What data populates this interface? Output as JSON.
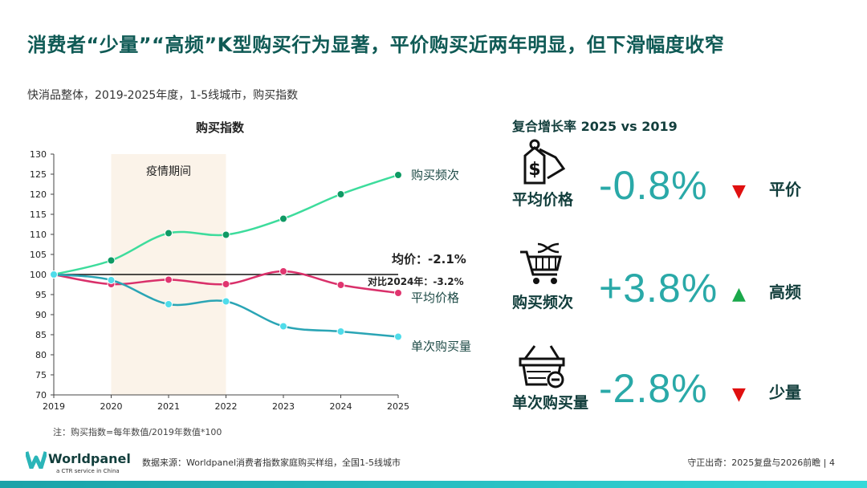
{
  "title": "消费者“少量”“高频”K型购买行为显著，平价购买近两年明显，但下滑幅度收窄",
  "subtitle": "快消品整体，2019-2025年度，1-5线城市，购买指数",
  "chart_data": {
    "type": "line",
    "title": "购买指数",
    "categories": [
      "2019",
      "2020",
      "2021",
      "2022",
      "2023",
      "2024",
      "2025"
    ],
    "ylim": [
      70,
      130
    ],
    "yticks": [
      70,
      75,
      80,
      85,
      90,
      95,
      100,
      105,
      110,
      115,
      120,
      125,
      130
    ],
    "shaded_region": {
      "from": "2020",
      "to": "2022",
      "label": "疫情期间",
      "color": "#fbf3e9"
    },
    "reference_line": 100,
    "series": [
      {
        "name": "购买频次",
        "values": [
          100,
          103.5,
          110.3,
          109.9,
          113.9,
          120.0,
          124.8
        ],
        "color": "#3ddc9c",
        "marker": "#0f9a64"
      },
      {
        "name": "平均价格",
        "values": [
          100,
          97.6,
          98.7,
          97.6,
          100.8,
          97.4,
          95.4
        ],
        "color": "#d9306a",
        "marker": "#e0356f"
      },
      {
        "name": "单次购买量",
        "values": [
          100,
          98.6,
          92.6,
          93.3,
          87.1,
          85.8,
          84.5
        ],
        "color": "#2aa5b5",
        "marker": "#4fdcea"
      }
    ],
    "annotations": {
      "avg_price": "均价：-2.1%",
      "vs_2024": "对比2024年：-3.2%"
    },
    "note": "注：购买指数=每年数值/2019年数值*100"
  },
  "right": {
    "title": "复合增长率 2025 vs 2019",
    "metrics": [
      {
        "label": "平均价格",
        "value": "-0.8%",
        "direction": "down",
        "tag": "平价",
        "icon": "price-tag-icon"
      },
      {
        "label": "购买频次",
        "value": "+3.8%",
        "direction": "up",
        "tag": "高频",
        "icon": "shopping-cart-icon"
      },
      {
        "label": "单次购买量",
        "value": "-2.8%",
        "direction": "down",
        "tag": "少量",
        "icon": "basket-minus-icon"
      }
    ],
    "arrow_up": "▲",
    "arrow_down": "▼",
    "up_color": "#1aa84a",
    "down_color": "#e01010"
  },
  "footer": {
    "logo": "Worldpanel",
    "logo_sub": "a CTR service in China",
    "source": "数据来源：Worldpanel消费者指数家庭购买样组，全国1-5线城市",
    "page": "守正出奇：2025复盘与2026前瞻 | 4"
  }
}
